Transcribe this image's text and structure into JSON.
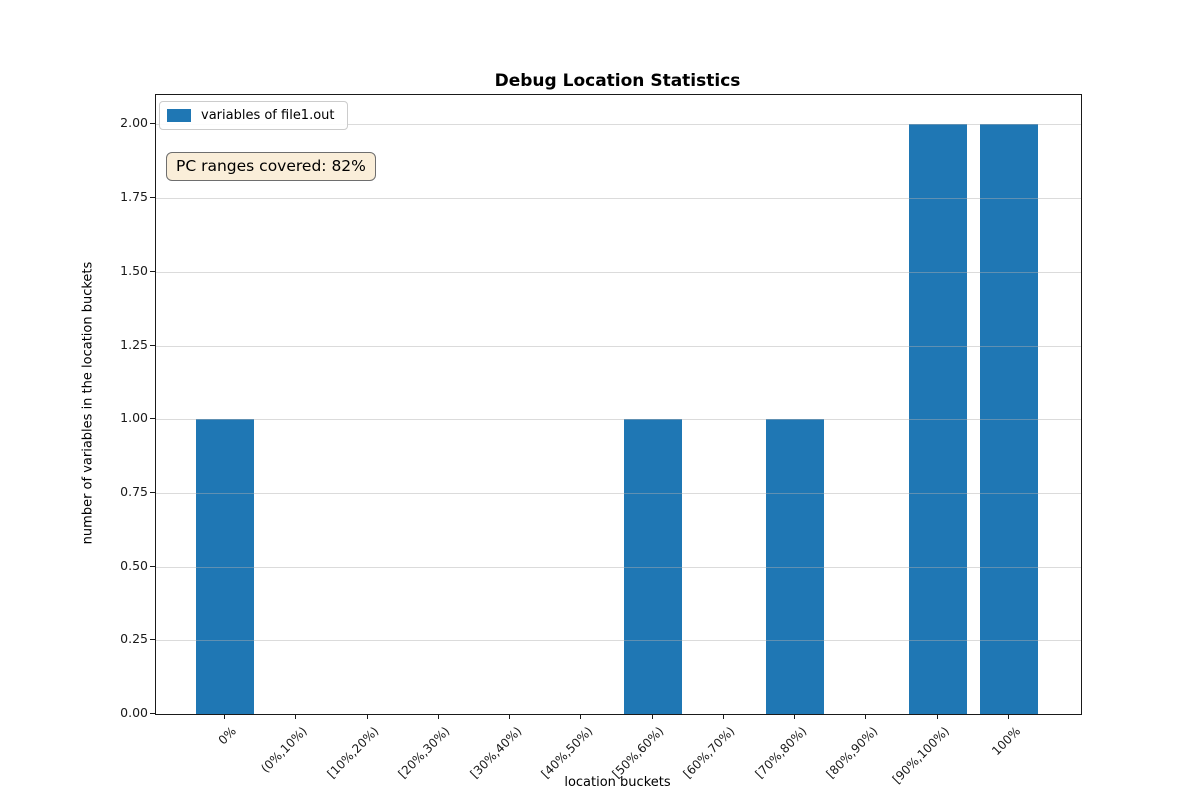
{
  "title": "Debug Location Statistics",
  "legend": {
    "label": "variables of file1.out",
    "swatch_color": "#1f77b4"
  },
  "annotation": {
    "text": "PC ranges covered: 82%",
    "bg_color": "#faeed9",
    "border_color": "#6e6e6e"
  },
  "chart_data": {
    "type": "bar",
    "title": "Debug Location Statistics",
    "xlabel": "location buckets",
    "ylabel": "number of variables in the location buckets",
    "categories": [
      "0%",
      "(0%,10%)",
      "[10%,20%)",
      "[20%,30%)",
      "[30%,40%)",
      "[40%,50%)",
      "[50%,60%)",
      "[60%,70%)",
      "[70%,80%)",
      "[80%,90%)",
      "[90%,100%)",
      "100%"
    ],
    "series": [
      {
        "name": "variables of file1.out",
        "values": [
          1,
          0,
          0,
          0,
          0,
          0,
          1,
          0,
          1,
          0,
          2,
          2
        ],
        "color": "#1f77b4"
      }
    ],
    "ytick_labels": [
      "0.00",
      "0.25",
      "0.50",
      "0.75",
      "1.00",
      "1.25",
      "1.50",
      "1.75",
      "2.00"
    ],
    "ytick_values": [
      0,
      0.25,
      0.5,
      0.75,
      1.0,
      1.25,
      1.5,
      1.75,
      2.0
    ],
    "ylim": [
      0,
      2.1
    ],
    "grid": "horizontal",
    "legend_position": "upper-left",
    "annotation_text": "PC ranges covered: 82%"
  }
}
